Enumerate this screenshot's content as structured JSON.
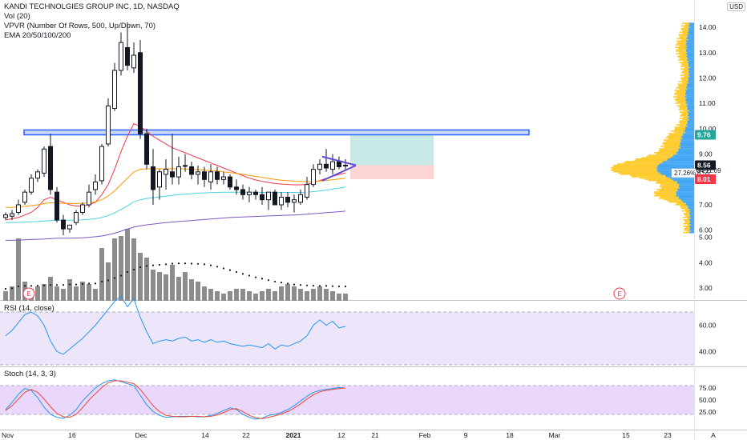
{
  "legend": {
    "title": "KANDI TECHNOLGIES GROUP INC, 1D, NASDAQ",
    "line2": "Vol (20)",
    "line3": "VPVR (Number Of Rows, 500, Up/Down, 70)",
    "line4": "EMA 20/50/100/200"
  },
  "rsi_label": "RSI (14, close)",
  "stoch_label": "Stoch (14, 3, 3)",
  "currency_label": "USD",
  "price_badges": {
    "resistance": "9.76",
    "last": "8.56",
    "percent_label": "27.26%",
    "percent_value": "8.55",
    "countdown": "04:11:09",
    "stop": "8.01"
  },
  "earnings_marker": "E",
  "colors": {
    "up": "#ffffff",
    "down": "#131722",
    "volume": "#8c8c8c",
    "ema20": "#f23645",
    "ema50": "#ff9800",
    "ema100": "#4dd0e1",
    "ema200": "#7e57c2",
    "resistance_zone": "#2962ff",
    "triangle": "#5b4bd6",
    "target_zone": "#26a69a",
    "stop_zone": "#ef5350",
    "vpvr_up": "#2196f3",
    "vpvr_down": "#ffc107",
    "rsi_line": "#2196f3",
    "rsi_band": "#e1d5f7",
    "stoch_k": "#2196f3",
    "stoch_d": "#f44336",
    "stoch_band": "#e0c8fb"
  },
  "chart_data": {
    "type": "candlestick",
    "price_axis": {
      "ticks": [
        "6.00",
        "7.00",
        "8.00",
        "9.00",
        "10.00",
        "11.00",
        "12.00",
        "13.00",
        "14.00"
      ],
      "ylim": [
        5.6,
        14.2
      ]
    },
    "volume_axis_ticks": [
      "3.00",
      "4.00",
      "5.00"
    ],
    "time_axis": [
      "Nov",
      "16",
      "Dec",
      "14",
      "22",
      "2021",
      "12",
      "21",
      "Feb",
      "9",
      "18",
      "Mar",
      "15",
      "23",
      "A"
    ],
    "x_dates": [
      "2020-10-29",
      "2020-10-30",
      "2020-11-02",
      "2020-11-03",
      "2020-11-04",
      "2020-11-05",
      "2020-11-06",
      "2020-11-09",
      "2020-11-10",
      "2020-11-11",
      "2020-11-12",
      "2020-11-13",
      "2020-11-16",
      "2020-11-17",
      "2020-11-18",
      "2020-11-19",
      "2020-11-20",
      "2020-11-23",
      "2020-11-24",
      "2020-11-25",
      "2020-11-27",
      "2020-11-30",
      "2020-12-01",
      "2020-12-02",
      "2020-12-03",
      "2020-12-04",
      "2020-12-07",
      "2020-12-08",
      "2020-12-09",
      "2020-12-10",
      "2020-12-11",
      "2020-12-14",
      "2020-12-15",
      "2020-12-16",
      "2020-12-17",
      "2020-12-18",
      "2020-12-21",
      "2020-12-22",
      "2020-12-23",
      "2020-12-24",
      "2020-12-28",
      "2020-12-29",
      "2020-12-30",
      "2020-12-31",
      "2021-01-04",
      "2021-01-05",
      "2021-01-06",
      "2021-01-07",
      "2021-01-08",
      "2021-01-11",
      "2021-01-12",
      "2021-01-13",
      "2021-01-14",
      "2021-01-15"
    ],
    "open": [
      6.5,
      6.55,
      6.7,
      7.1,
      7.5,
      8.05,
      8.25,
      9.3,
      7.5,
      6.4,
      6.05,
      6.3,
      6.7,
      7.0,
      7.6,
      7.95,
      9.4,
      10.8,
      12.3,
      13.2,
      12.4,
      13.0,
      9.8,
      8.5,
      7.7,
      8.2,
      8.3,
      8.1,
      8.55,
      8.5,
      8.2,
      8.3,
      7.9,
      8.3,
      8.0,
      8.1,
      7.7,
      7.6,
      7.4,
      7.5,
      7.4,
      7.2,
      7.5,
      7.0,
      7.3,
      7.1,
      7.1,
      7.3,
      7.8,
      8.4,
      8.6,
      8.4,
      8.7,
      8.55
    ],
    "high": [
      6.7,
      6.8,
      7.2,
      7.6,
      8.2,
      8.4,
      9.3,
      9.8,
      7.7,
      6.6,
      6.2,
      6.8,
      7.1,
      7.8,
      8.2,
      9.4,
      11.2,
      12.6,
      13.8,
      14.2,
      13.4,
      13.5,
      10.0,
      9.2,
      8.4,
      8.8,
      9.8,
      8.9,
      9.0,
      8.7,
      8.55,
      8.5,
      8.6,
      8.5,
      8.3,
      8.2,
      8.0,
      7.8,
      7.7,
      7.6,
      7.7,
      7.5,
      7.6,
      7.5,
      7.5,
      7.4,
      7.6,
      8.1,
      8.6,
      8.8,
      9.2,
      9.0,
      8.9,
      8.8
    ],
    "low": [
      6.4,
      6.4,
      6.6,
      7.0,
      7.4,
      7.9,
      8.1,
      7.4,
      6.3,
      5.8,
      5.9,
      6.2,
      6.6,
      6.9,
      7.4,
      7.8,
      9.3,
      10.7,
      12.1,
      12.3,
      12.2,
      9.6,
      8.4,
      7.0,
      7.2,
      7.6,
      7.8,
      7.8,
      8.3,
      8.0,
      7.8,
      7.7,
      7.6,
      7.8,
      7.8,
      7.6,
      7.4,
      7.2,
      7.1,
      7.2,
      7.0,
      6.8,
      7.0,
      6.8,
      6.9,
      6.7,
      7.0,
      7.2,
      7.7,
      8.2,
      8.3,
      8.2,
      8.4,
      8.4
    ],
    "close": [
      6.6,
      6.65,
      7.0,
      7.5,
      8.05,
      8.3,
      9.2,
      7.6,
      6.4,
      6.05,
      6.2,
      6.7,
      7.0,
      7.5,
      7.9,
      9.3,
      10.9,
      12.3,
      13.4,
      12.5,
      12.9,
      9.8,
      8.6,
      7.6,
      8.3,
      8.4,
      8.1,
      8.5,
      8.55,
      8.2,
      8.3,
      8.0,
      8.3,
      8.0,
      8.1,
      7.7,
      7.6,
      7.4,
      7.5,
      7.4,
      7.2,
      7.5,
      7.0,
      7.3,
      7.1,
      7.2,
      7.4,
      7.8,
      8.4,
      8.6,
      8.45,
      8.7,
      8.5,
      8.56
    ],
    "ema20": [
      6.4,
      6.45,
      6.5,
      6.6,
      6.7,
      6.9,
      7.2,
      7.3,
      7.2,
      7.1,
      7.0,
      6.95,
      6.95,
      7.0,
      7.1,
      7.4,
      7.8,
      8.4,
      9.1,
      9.7,
      10.2,
      10.1,
      9.9,
      9.7,
      9.55,
      9.4,
      9.25,
      9.15,
      9.05,
      8.95,
      8.85,
      8.75,
      8.65,
      8.55,
      8.45,
      8.35,
      8.25,
      8.15,
      8.05,
      7.98,
      7.92,
      7.88,
      7.84,
      7.82,
      7.8,
      7.79,
      7.79,
      7.8,
      7.88,
      7.96,
      8.04,
      8.12,
      8.2,
      8.26
    ],
    "ema50": [
      6.9,
      6.9,
      6.92,
      6.94,
      6.97,
      7.0,
      7.05,
      7.08,
      7.07,
      7.06,
      7.05,
      7.05,
      7.06,
      7.08,
      7.12,
      7.2,
      7.35,
      7.55,
      7.8,
      8.05,
      8.3,
      8.4,
      8.42,
      8.42,
      8.42,
      8.42,
      8.42,
      8.42,
      8.41,
      8.4,
      8.39,
      8.37,
      8.35,
      8.33,
      8.3,
      8.27,
      8.24,
      8.2,
      8.16,
      8.12,
      8.08,
      8.04,
      8.0,
      7.97,
      7.95,
      7.93,
      7.92,
      7.91,
      7.92,
      7.94,
      7.96,
      7.99,
      8.02,
      8.05
    ],
    "ema100": [
      6.3,
      6.3,
      6.31,
      6.32,
      6.33,
      6.34,
      6.36,
      6.38,
      6.39,
      6.39,
      6.39,
      6.4,
      6.41,
      6.43,
      6.45,
      6.5,
      6.58,
      6.68,
      6.82,
      6.96,
      7.12,
      7.2,
      7.25,
      7.28,
      7.31,
      7.34,
      7.37,
      7.4,
      7.42,
      7.44,
      7.46,
      7.47,
      7.48,
      7.49,
      7.5,
      7.5,
      7.5,
      7.5,
      7.5,
      7.5,
      7.49,
      7.49,
      7.49,
      7.49,
      7.49,
      7.49,
      7.49,
      7.5,
      7.52,
      7.55,
      7.58,
      7.62,
      7.66,
      7.7
    ],
    "ema200": [
      5.6,
      5.6,
      5.61,
      5.62,
      5.63,
      5.64,
      5.65,
      5.67,
      5.68,
      5.68,
      5.68,
      5.69,
      5.7,
      5.72,
      5.74,
      5.77,
      5.82,
      5.88,
      5.96,
      6.04,
      6.12,
      6.17,
      6.21,
      6.24,
      6.27,
      6.3,
      6.32,
      6.34,
      6.36,
      6.38,
      6.4,
      6.42,
      6.44,
      6.46,
      6.48,
      6.5,
      6.51,
      6.52,
      6.53,
      6.54,
      6.55,
      6.56,
      6.57,
      6.58,
      6.59,
      6.6,
      6.61,
      6.63,
      6.65,
      6.67,
      6.69,
      6.71,
      6.73,
      6.75
    ],
    "volume": [
      0.4,
      0.6,
      2.6,
      0.8,
      0.5,
      0.6,
      0.7,
      1.0,
      0.6,
      0.5,
      0.9,
      0.6,
      0.8,
      0.7,
      0.5,
      2.2,
      1.6,
      2.6,
      2.7,
      3.0,
      2.6,
      2.0,
      1.8,
      1.3,
      1.2,
      1.1,
      1.5,
      1.0,
      1.2,
      0.9,
      0.8,
      0.6,
      0.5,
      0.4,
      0.3,
      0.4,
      0.5,
      0.5,
      0.4,
      0.3,
      0.4,
      0.5,
      0.4,
      0.6,
      0.7,
      0.6,
      0.5,
      0.4,
      0.5,
      0.6,
      0.5,
      0.4,
      0.3,
      0.3
    ],
    "vol_ma": [
      0.5,
      0.52,
      0.6,
      0.62,
      0.62,
      0.63,
      0.64,
      0.66,
      0.66,
      0.66,
      0.68,
      0.68,
      0.7,
      0.72,
      0.72,
      0.8,
      0.85,
      0.95,
      1.05,
      1.2,
      1.3,
      1.4,
      1.45,
      1.48,
      1.5,
      1.52,
      1.55,
      1.56,
      1.56,
      1.55,
      1.54,
      1.52,
      1.48,
      1.42,
      1.35,
      1.28,
      1.2,
      1.12,
      1.05,
      0.98,
      0.92,
      0.86,
      0.8,
      0.76,
      0.72,
      0.68,
      0.66,
      0.64,
      0.63,
      0.62,
      0.62,
      0.61,
      0.6,
      0.6
    ],
    "rsi": [
      52,
      56,
      62,
      68,
      70,
      67,
      60,
      48,
      40,
      38,
      42,
      46,
      50,
      55,
      60,
      66,
      72,
      78,
      82,
      74,
      80,
      66,
      55,
      46,
      48,
      49,
      48,
      50,
      51,
      48,
      49,
      47,
      49,
      47,
      48,
      46,
      45,
      44,
      45,
      44,
      43,
      46,
      42,
      45,
      44,
      46,
      48,
      52,
      60,
      64,
      60,
      63,
      58,
      59
    ],
    "rsi_axis_ticks": [
      "40.00",
      "60.00"
    ],
    "stoch_k": [
      30,
      45,
      62,
      74,
      70,
      55,
      35,
      20,
      14,
      12,
      18,
      30,
      48,
      62,
      75,
      84,
      90,
      92,
      88,
      84,
      80,
      60,
      40,
      26,
      18,
      14,
      15,
      16,
      16,
      16,
      15,
      15,
      18,
      22,
      28,
      34,
      30,
      20,
      14,
      10,
      12,
      18,
      20,
      24,
      30,
      38,
      48,
      58,
      66,
      70,
      72,
      74,
      76,
      75
    ],
    "stoch_d": [
      28,
      38,
      52,
      66,
      72,
      66,
      52,
      36,
      22,
      15,
      14,
      20,
      34,
      50,
      63,
      76,
      86,
      90,
      90,
      87,
      84,
      72,
      55,
      38,
      26,
      18,
      16,
      15,
      15,
      16,
      16,
      15,
      16,
      19,
      24,
      30,
      32,
      26,
      18,
      13,
      11,
      14,
      17,
      21,
      26,
      33,
      42,
      52,
      61,
      67,
      70,
      72,
      74,
      75
    ],
    "stoch_axis_ticks": [
      "25.00",
      "50.00",
      "75.00"
    ],
    "annotations": {
      "resistance_zone": [
        9.76,
        9.95
      ],
      "target_zone": [
        8.56,
        9.76
      ],
      "stop_zone": [
        8.01,
        8.56
      ],
      "triangle_upper": [
        [
          8.9,
          "2021-01-08"
        ],
        [
          8.56,
          "2021-01-15"
        ]
      ],
      "triangle_lower": [
        [
          7.95,
          "2021-01-08"
        ],
        [
          8.55,
          "2021-01-15"
        ]
      ]
    }
  }
}
